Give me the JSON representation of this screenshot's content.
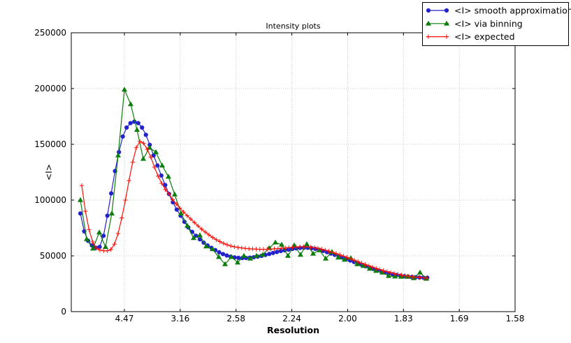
{
  "figure": {
    "title": "Intensity plots",
    "xlabel": "Resolution",
    "ylabel": "<I>",
    "background_color": "#ffffff",
    "frame_color": "#000000",
    "grid_color": "#c9c9c9"
  },
  "chart_data": {
    "type": "line",
    "title": "Intensity plots",
    "xlabel": "Resolution",
    "ylabel": "<I>",
    "grid": true,
    "legend_position": "upper right, outside axes",
    "x_axis": {
      "unit": "1/d^2",
      "range": [
        0.002411,
        0.4
      ],
      "tick_positions": [
        0.05,
        0.1,
        0.15,
        0.2,
        0.25,
        0.3,
        0.35,
        0.4
      ],
      "tick_labels": [
        "4.47",
        "3.16",
        "2.58",
        "2.24",
        "2.00",
        "1.83",
        "1.69",
        "1.58"
      ]
    },
    "y_axis": {
      "range": [
        0,
        250000
      ],
      "tick_positions": [
        0,
        50000,
        100000,
        150000,
        200000,
        250000
      ],
      "tick_labels": [
        "0",
        "50000",
        "100000",
        "150000",
        "200000",
        "250000"
      ]
    },
    "series": [
      {
        "name": "<I> smooth approximation",
        "color": "#2222cc",
        "marker": "circle",
        "x_start": 0.010551,
        "x_step": 0.003453,
        "values": [
          88000,
          72000,
          63500,
          59300,
          57300,
          58000,
          68000,
          86000,
          106000,
          126000,
          143000,
          157000,
          165000,
          169000,
          170300,
          169000,
          165000,
          158500,
          149500,
          140000,
          131000,
          122000,
          113500,
          105500,
          98000,
          91500,
          86000,
          80500,
          75500,
          71500,
          68000,
          64800,
          61800,
          59300,
          57200,
          55200,
          53200,
          51600,
          50300,
          49300,
          48600,
          48200,
          48000,
          48100,
          48400,
          48800,
          49300,
          50000,
          50800,
          51700,
          52600,
          53500,
          54300,
          55000,
          55600,
          56200,
          56700,
          57100,
          57300,
          57200,
          56800,
          56200,
          55400,
          54400,
          53300,
          52100,
          50900,
          49700,
          48400,
          47100,
          45800,
          44500,
          43200,
          41900,
          40700,
          39500,
          38300,
          37200,
          36200,
          35200,
          34300,
          33500,
          32800,
          32200,
          31700,
          31300,
          31000,
          30800,
          30600,
          30500,
          30400
        ]
      },
      {
        "name": "<I> via binning",
        "color": "#0b7d0b",
        "marker": "triangle",
        "x_start": 0.010551,
        "x_step": 0.005635,
        "values": [
          100000,
          65000,
          56500,
          71000,
          58000,
          88000,
          140000,
          199000,
          186000,
          163000,
          137000,
          147000,
          143000,
          131000,
          121000,
          105000,
          88000,
          77000,
          66000,
          68500,
          58500,
          56000,
          49000,
          42500,
          49000,
          44000,
          50000,
          47500,
          50000,
          51000,
          57000,
          62000,
          60000,
          50000,
          59500,
          51000,
          60500,
          52000,
          55000,
          47500,
          53500,
          48500,
          46500,
          48000,
          42500,
          41000,
          38500,
          36500,
          35000,
          32000,
          31500,
          31300,
          31300,
          30000,
          35000,
          29500
        ]
      },
      {
        "name": "<I> expected",
        "color": "#fb0e07",
        "marker": "plus",
        "x_start": 0.011797,
        "x_step": 0.003256,
        "values": [
          113000,
          90000,
          73500,
          62500,
          56800,
          55200,
          54600,
          54500,
          55700,
          60500,
          70000,
          84000,
          100000,
          117500,
          134000,
          147000,
          152500,
          151000,
          145500,
          138500,
          129500,
          121500,
          115000,
          109500,
          105500,
          100500,
          96500,
          92800,
          89300,
          86000,
          83000,
          79800,
          76800,
          73900,
          71300,
          68800,
          66500,
          64500,
          62800,
          61200,
          59900,
          58900,
          58100,
          57500,
          57100,
          56700,
          56400,
          56200,
          56000,
          55900,
          55900,
          55900,
          56100,
          56300,
          56500,
          56800,
          57100,
          57400,
          57700,
          57900,
          58100,
          58200,
          58100,
          57800,
          57300,
          56700,
          56000,
          55100,
          54200,
          53200,
          52100,
          51000,
          49800,
          48600,
          47400,
          46100,
          44800,
          43500,
          42300,
          41100,
          39900,
          38800,
          37700,
          36700,
          35800,
          34900,
          34100,
          33400,
          32800,
          32200,
          31700,
          31300,
          30900,
          30600,
          30300,
          30100
        ]
      }
    ]
  }
}
